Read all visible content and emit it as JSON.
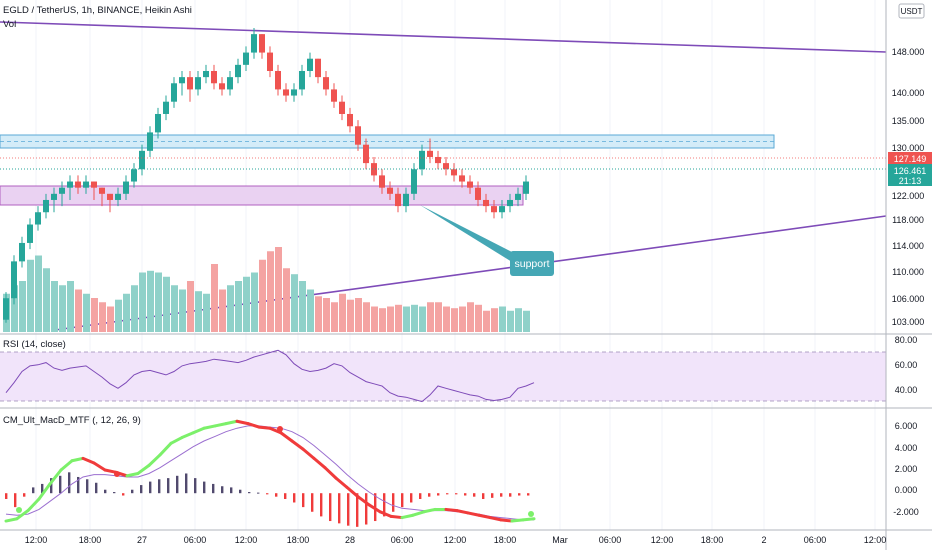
{
  "header": {
    "symbol_line": "EGLD / TetherUS, 1h, BINANCE, Heikin Ashi",
    "vol_label": "Vol",
    "currency_badge": "USDT"
  },
  "price_axis": {
    "ticks": [
      "148.000",
      "140.000",
      "135.000",
      "130.000",
      "122.000",
      "118.000",
      "114.000",
      "110.000",
      "106.000",
      "103.000"
    ],
    "current_price_label": "127.149",
    "last_price_label": "126.461",
    "countdown_label": "21:13"
  },
  "rsi": {
    "title": "RSI (14, close)",
    "ticks": [
      "80.00",
      "60.00",
      "40.00"
    ]
  },
  "macd": {
    "title": "CM_Ult_MacD_MTF (, 12, 26, 9)",
    "ticks": [
      "6.000",
      "4.000",
      "2.000",
      "0.000",
      "-2.000"
    ]
  },
  "time_axis": {
    "ticks": [
      "12:00",
      "18:00",
      "27",
      "06:00",
      "12:00",
      "18:00",
      "28",
      "06:00",
      "12:00",
      "18:00",
      "Mar",
      "06:00",
      "12:00",
      "18:00",
      "2",
      "06:00",
      "12:00"
    ]
  },
  "annotation": {
    "text": "support"
  },
  "colors": {
    "up": "#26a69a",
    "down": "#ef5350",
    "vol_up": "#8fd1c9",
    "vol_down": "#f4a3a2",
    "trend_line": "#7e4bb8",
    "rsi_line": "#7e4bb8",
    "resistance_zone": "#d4ecf8",
    "support_zone": "#ead2f2",
    "macd_green": "#7cf06a",
    "macd_red": "#f03b3b",
    "signal_line": "#9b6fd0",
    "callout": "#45a7b5"
  },
  "chart_data": {
    "type": "candlestick",
    "price_ylim": [
      101.5,
      151
    ],
    "candles": [
      [
        103.5,
        107,
        103,
        108
      ],
      [
        107,
        113,
        106,
        114
      ],
      [
        113,
        116,
        112,
        117
      ],
      [
        116,
        119,
        115,
        120
      ],
      [
        119,
        121,
        118,
        122
      ],
      [
        121,
        123,
        120,
        124
      ],
      [
        123,
        124,
        121,
        125
      ],
      [
        124,
        125,
        122,
        126
      ],
      [
        125,
        126,
        123,
        127
      ],
      [
        126,
        125,
        124,
        127
      ],
      [
        125,
        126,
        124,
        127
      ],
      [
        126,
        125,
        123,
        126
      ],
      [
        125,
        124,
        122,
        125
      ],
      [
        124,
        123,
        121,
        124
      ],
      [
        123,
        124,
        122,
        125
      ],
      [
        124,
        126,
        123,
        127
      ],
      [
        126,
        128,
        125,
        129
      ],
      [
        128,
        131,
        127,
        132
      ],
      [
        131,
        134,
        130,
        135
      ],
      [
        134,
        137,
        133,
        138
      ],
      [
        137,
        139,
        136,
        140
      ],
      [
        139,
        142,
        138,
        143
      ],
      [
        142,
        143,
        140,
        144
      ],
      [
        143,
        141,
        139,
        144
      ],
      [
        141,
        143,
        140,
        144
      ],
      [
        143,
        144,
        142,
        145
      ],
      [
        144,
        142,
        141,
        145
      ],
      [
        142,
        141,
        140,
        143
      ],
      [
        141,
        143,
        140,
        144
      ],
      [
        143,
        145,
        142,
        146
      ],
      [
        145,
        147,
        144,
        148
      ],
      [
        147,
        150,
        146,
        151
      ],
      [
        150,
        147,
        146,
        150
      ],
      [
        147,
        144,
        143,
        148
      ],
      [
        144,
        141,
        140,
        145
      ],
      [
        141,
        140,
        139,
        142
      ],
      [
        140,
        141,
        139,
        142
      ],
      [
        141,
        144,
        140,
        145
      ],
      [
        144,
        146,
        143,
        147
      ],
      [
        146,
        143,
        142,
        146
      ],
      [
        143,
        141,
        140,
        144
      ],
      [
        141,
        139,
        138,
        142
      ],
      [
        139,
        137,
        136,
        140
      ],
      [
        137,
        135,
        134,
        138
      ],
      [
        135,
        132,
        131,
        136
      ],
      [
        132,
        129,
        128,
        133
      ],
      [
        129,
        127,
        126,
        130
      ],
      [
        127,
        125,
        124,
        128
      ],
      [
        125,
        124,
        123,
        126
      ],
      [
        124,
        122,
        121,
        125
      ],
      [
        122,
        124,
        121,
        125
      ],
      [
        124,
        128,
        123,
        129
      ],
      [
        128,
        131,
        127,
        132
      ],
      [
        131,
        130,
        129,
        133
      ],
      [
        130,
        129,
        128,
        131
      ],
      [
        129,
        128,
        127,
        130
      ],
      [
        128,
        127,
        126,
        129
      ],
      [
        127,
        126,
        125,
        128
      ],
      [
        126,
        125,
        124,
        127
      ],
      [
        125,
        123,
        122,
        126
      ],
      [
        123,
        122,
        121,
        124
      ],
      [
        122,
        121,
        120,
        123
      ],
      [
        121,
        122,
        120,
        123
      ],
      [
        122,
        123,
        121,
        124
      ],
      [
        123,
        124,
        122,
        125
      ],
      [
        124,
        126,
        123,
        127
      ]
    ],
    "volume": [
      0.45,
      0.55,
      0.6,
      0.85,
      0.9,
      0.75,
      0.6,
      0.55,
      0.6,
      0.5,
      0.45,
      0.4,
      0.35,
      0.3,
      0.38,
      0.45,
      0.55,
      0.7,
      0.72,
      0.7,
      0.65,
      0.55,
      0.5,
      0.6,
      0.48,
      0.45,
      0.8,
      0.5,
      0.55,
      0.6,
      0.65,
      0.7,
      0.85,
      0.95,
      1.0,
      0.75,
      0.68,
      0.6,
      0.5,
      0.42,
      0.4,
      0.35,
      0.45,
      0.38,
      0.4,
      0.35,
      0.3,
      0.28,
      0.3,
      0.32,
      0.3,
      0.32,
      0.3,
      0.35,
      0.35,
      0.3,
      0.28,
      0.3,
      0.35,
      0.32,
      0.25,
      0.28,
      0.3,
      0.25,
      0.28,
      0.25
    ],
    "rsi_ylim": [
      25,
      85
    ],
    "rsi_values": [
      36,
      45,
      55,
      60,
      61,
      63,
      58,
      56,
      58,
      59,
      60,
      55,
      50,
      44,
      40,
      45,
      52,
      55,
      56,
      54,
      52,
      55,
      60,
      62,
      63,
      64,
      66,
      65,
      64,
      63,
      65,
      68,
      70,
      72,
      74,
      70,
      62,
      57,
      55,
      56,
      58,
      62,
      60,
      54,
      50,
      46,
      44,
      42,
      36,
      33,
      32,
      30,
      28,
      34,
      42,
      40,
      38,
      36,
      34,
      33,
      30,
      29,
      30,
      32,
      40,
      42,
      45
    ],
    "macd_ylim": [
      -3,
      7
    ],
    "macd_hist": [
      -0.5,
      -1.2,
      -0.3,
      0.5,
      0.8,
      1.3,
      1.5,
      1.8,
      1.4,
      1.2,
      0.9,
      0.3,
      0.1,
      -0.2,
      0.3,
      0.7,
      1.0,
      1.2,
      1.3,
      1.5,
      1.7,
      1.3,
      1.0,
      0.8,
      0.6,
      0.5,
      0.3,
      0.1,
      0.05,
      -0.1,
      -0.3,
      -0.5,
      -0.8,
      -1.2,
      -1.6,
      -2.0,
      -2.4,
      -2.6,
      -2.8,
      -2.9,
      -2.7,
      -2.4,
      -2.0,
      -1.6,
      -1.2,
      -0.8,
      -0.5,
      -0.3,
      -0.2,
      -0.1,
      -0.1,
      -0.2,
      -0.3,
      -0.5,
      -0.4,
      -0.3,
      -0.3,
      -0.2,
      -0.2
    ],
    "macd_line": [
      -2.4,
      -2.2,
      -1.5,
      -0.5,
      0.8,
      2.0,
      2.8,
      3.0,
      2.6,
      2.0,
      1.8,
      1.5,
      1.7,
      2.4,
      3.3,
      4.3,
      4.8,
      5.2,
      5.6,
      5.8,
      6.0,
      6.2,
      6.0,
      5.7,
      5.6,
      5.2,
      4.5,
      3.8,
      3.0,
      2.2,
      1.3,
      0.5,
      -0.3,
      -1.0,
      -1.6,
      -2.0,
      -2.1,
      -1.9,
      -1.6,
      -1.4,
      -1.4,
      -1.5,
      -1.7,
      -1.9,
      -2.1,
      -2.3,
      -2.4,
      -2.3,
      -2.2
    ],
    "signal_line": [
      -1.8,
      -1.9,
      -1.8,
      -1.4,
      -0.7,
      0.0,
      0.8,
      1.4,
      1.6,
      1.6,
      1.5,
      1.4,
      1.4,
      1.7,
      2.2,
      2.8,
      3.4,
      4.0,
      4.5,
      4.9,
      5.3,
      5.6,
      5.8,
      5.8,
      5.7,
      5.6,
      5.3,
      4.8,
      4.1,
      3.3,
      2.5,
      1.6,
      0.8,
      0.1,
      -0.5,
      -1.0,
      -1.3,
      -1.4,
      -1.5,
      -1.5,
      -1.5,
      -1.6,
      -1.7,
      -1.8,
      -2.0,
      -2.1,
      -2.2,
      -2.3,
      -2.3
    ]
  }
}
